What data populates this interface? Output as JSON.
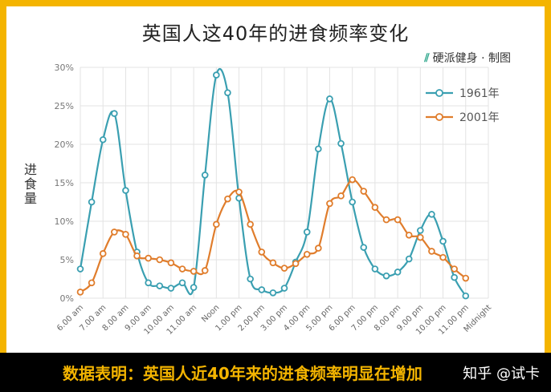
{
  "page": {
    "caption": "数据表明：英国人近40年来的进食频率明显在增加",
    "watermark": "知乎 @试卡"
  },
  "brand": {
    "name": "硬派健身 · 制图",
    "icon": "brand-logo-icon"
  },
  "ylabel_chars": [
    "进",
    "食",
    "量"
  ],
  "colors": {
    "series_1961": "#3a9fb1",
    "series_2001": "#e07d2c",
    "frame": "#f4b400",
    "grid": "#e3e3e3"
  },
  "chart_data": {
    "type": "line",
    "title": "英国人这40年的进食频率变化",
    "ylabel": "进食量",
    "xlabel": "",
    "ylim": [
      0,
      30
    ],
    "yticks": [
      "0%",
      "5%",
      "10%",
      "15%",
      "20%",
      "25%",
      "30%"
    ],
    "categories": [
      "6.00 am",
      "7.00 am",
      "8.00 am",
      "9.00 am",
      "10.00 am",
      "11.00 am",
      "Noon",
      "1.00 pm",
      "2.00 pm",
      "3.00 pm",
      "4.00 pm",
      "5.00 pm",
      "6.00 pm",
      "7.00 pm",
      "8.00 pm",
      "9.00 pm",
      "10.00 pm",
      "11.00 pm",
      "Midnight"
    ],
    "x": [
      0,
      0.5,
      1,
      1.5,
      2,
      2.5,
      3,
      3.5,
      4,
      4.5,
      5,
      5.5,
      6,
      6.5,
      7,
      7.5,
      8,
      8.5,
      9,
      9.5,
      10,
      10.5,
      11,
      11.5,
      12,
      12.5,
      13,
      13.5,
      14,
      14.5,
      15,
      15.5,
      16,
      16.5,
      17,
      17.5,
      18
    ],
    "legend": "top-right",
    "grid": true,
    "series": [
      {
        "name": "1961年",
        "values": [
          3.8,
          12.5,
          20.6,
          24,
          14,
          6,
          2,
          1.6,
          1.3,
          2,
          1.4,
          16,
          29,
          26.7,
          13,
          2.5,
          1.1,
          0.7,
          1.3,
          4.7,
          8.6,
          19.4,
          25.9,
          20.1,
          12.5,
          6.6,
          3.8,
          2.9,
          3.4,
          5.1,
          8.8,
          10.9,
          7.4,
          2.7,
          0.3,
          null,
          null
        ]
      },
      {
        "name": "2001年",
        "values": [
          0.8,
          2,
          5.8,
          8.6,
          8.3,
          5.5,
          5.2,
          5,
          4.6,
          3.8,
          3.5,
          3.6,
          9.6,
          12.9,
          13.8,
          9.6,
          6,
          4.6,
          3.9,
          4.5,
          5.7,
          6.5,
          12.3,
          13.3,
          15.4,
          13.9,
          11.8,
          10.2,
          10.2,
          8.2,
          7.9,
          6.1,
          5.3,
          3.8,
          2.6,
          null,
          null
        ]
      }
    ]
  }
}
